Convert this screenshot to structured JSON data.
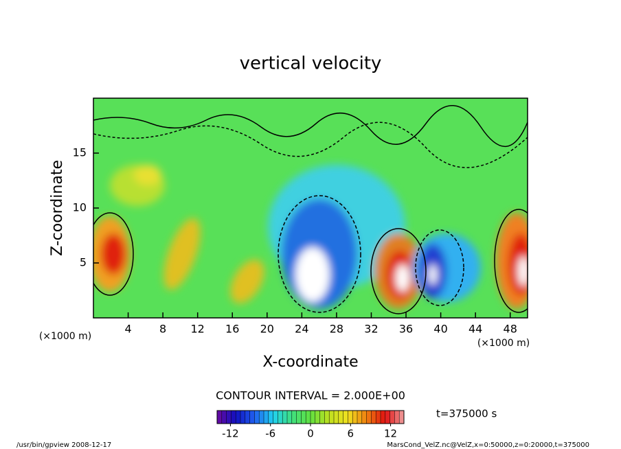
{
  "chart_data": {
    "type": "contour",
    "title": "vertical velocity",
    "x_label": "X-coordinate",
    "y_label": "Z-coordinate",
    "x_unit": "(×1000 m)",
    "y_unit": "(×1000 m)",
    "xlim": [
      0,
      50
    ],
    "xticks": [
      4,
      8,
      12,
      16,
      20,
      24,
      28,
      32,
      36,
      40,
      44,
      48
    ],
    "ylim": [
      0,
      20
    ],
    "yticks": [
      5,
      10,
      15
    ],
    "colorbar": {
      "label": "CONTOUR INTERVAL = 2.000E+00",
      "clim": [
        -14,
        14
      ],
      "ticks": [
        -12,
        -6,
        0,
        6,
        12
      ],
      "colormap": [
        "#6a0aa0",
        "#1010c0",
        "#2060f0",
        "#20d0f0",
        "#40e080",
        "#60e040",
        "#c0e020",
        "#f0e020",
        "#f08010",
        "#e01010",
        "#f0a0a0"
      ]
    },
    "time_label": "t=375000 s",
    "footer_left": "/usr/bin/gpview  2008-12-17",
    "footer_right": "MarsCond_VelZ.nc@VelZ,x=0:50000,z=0:20000,t=375000"
  }
}
